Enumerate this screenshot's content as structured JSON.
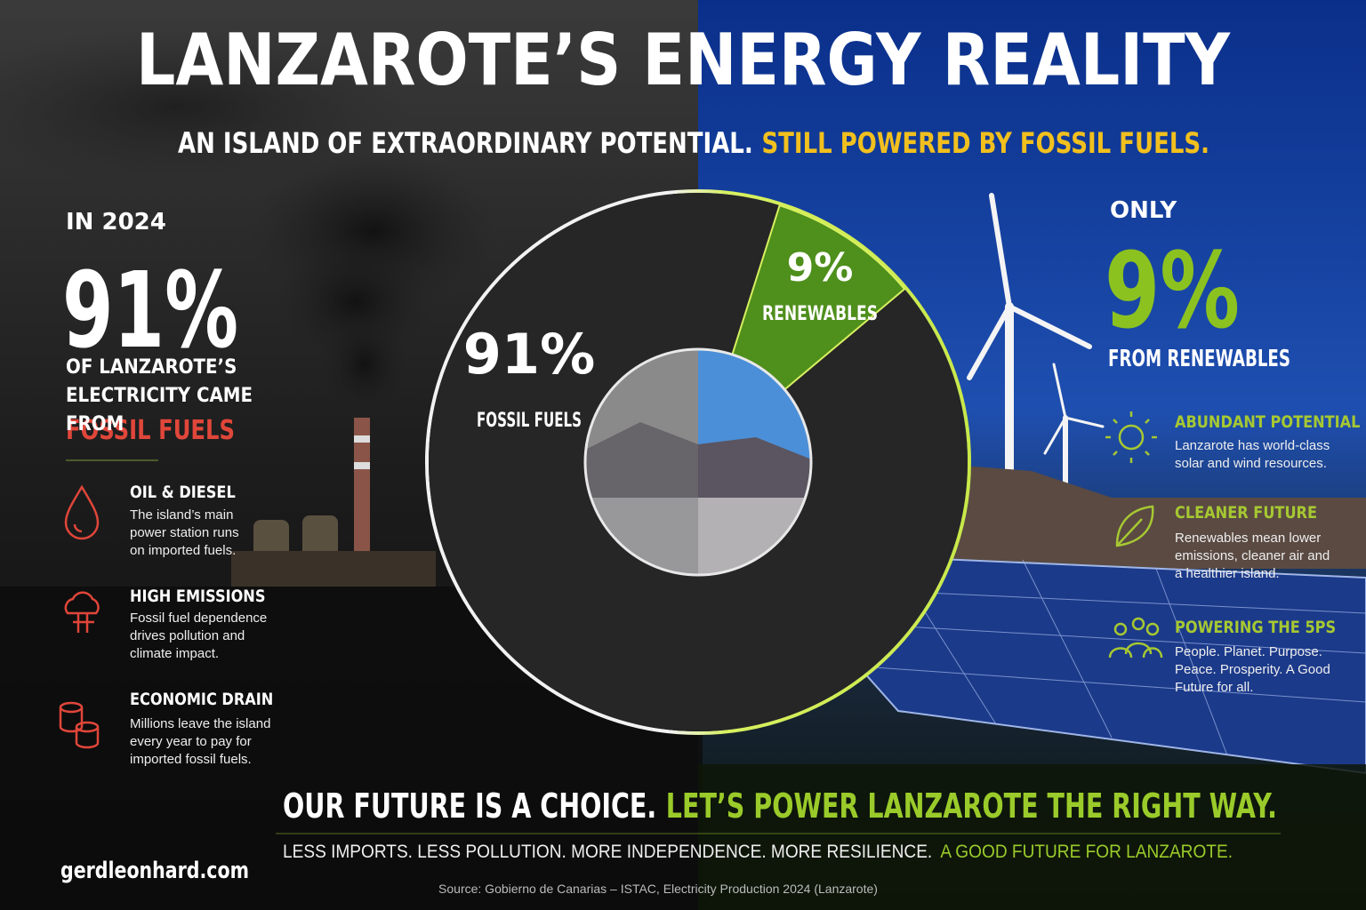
{
  "title": "LANZAROTE’S ENERGY REALITY",
  "subtitle": {
    "part1": "AN ISLAND OF EXTRAORDINARY POTENTIAL.",
    "part2": "STILL POWERED BY FOSSIL FUELS."
  },
  "left": {
    "year": "IN 2024",
    "stat": "91%",
    "text": "OF LANZAROTE’S ELECTRICITY CAME FROM",
    "highlight": "FOSSIL FUELS",
    "items": [
      {
        "title": "OIL & DIESEL",
        "text": "The island’s main power station runs on imported fuels."
      },
      {
        "title": "HIGH EMISSIONS",
        "text": "Fossil fuel dependence drives pollution and climate impact."
      },
      {
        "title": "ECONOMIC DRAIN",
        "text": "Millions leave the island every year to pay for imported fossil fuels."
      }
    ]
  },
  "right": {
    "prefix": "ONLY",
    "stat": "9%",
    "text": "FROM RENEWABLES",
    "items": [
      {
        "title": "ABUNDANT POTENTIAL",
        "text": "Lanzarote has world-class solar and wind resources."
      },
      {
        "title": "CLEANER FUTURE",
        "text": "Renewables mean lower emissions, cleaner air and a healthier island."
      },
      {
        "title": "POWERING THE 5PS",
        "text": "People. Planet. Purpose. Peace. Prosperity. A Good Future for all."
      }
    ]
  },
  "chart_data": {
    "type": "pie",
    "categories": [
      "FOSSIL FUELS",
      "RENEWABLES"
    ],
    "values": [
      91,
      9
    ],
    "value_labels": [
      "91%",
      "9%"
    ],
    "colors": [
      "#262626",
      "#4f8f1c"
    ]
  },
  "footer": {
    "headline1": "OUR FUTURE IS A CHOICE.",
    "headline2": "LET’S POWER LANZAROTE THE RIGHT WAY.",
    "tagline1": "LESS IMPORTS. LESS POLLUTION. MORE INDEPENDENCE. MORE RESILIENCE.",
    "tagline2": "A GOOD FUTURE FOR LANZAROTE.",
    "website": "gerdleonhard.com",
    "source": "Source: Gobierno de Canarias – ISTAC, Electricity Production 2024 (Lanzarote)"
  }
}
